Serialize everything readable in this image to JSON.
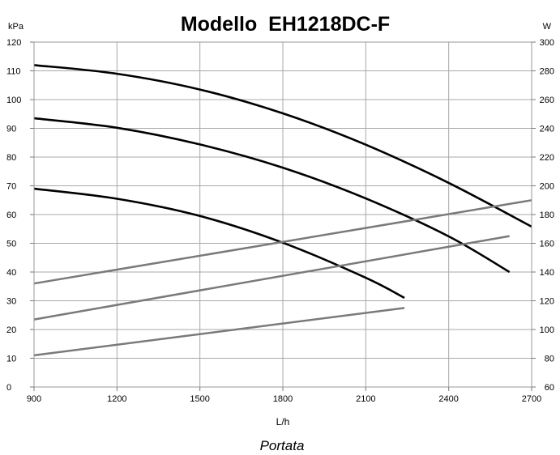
{
  "chart_data": {
    "type": "line",
    "title": "Modello  EH1218DC-F",
    "y_unit_left": "kPa",
    "y_unit_right": "W",
    "xlabel": "L/h",
    "xsublabel": "Portata",
    "xlim": [
      900,
      2700
    ],
    "ylim_left": [
      0,
      120
    ],
    "ylim_right": [
      60,
      300
    ],
    "x_ticks": [
      "900",
      "1200",
      "1500",
      "1800",
      "2100",
      "2400",
      "2700"
    ],
    "y_ticks_left": [
      "0",
      "10",
      "20",
      "30",
      "40",
      "50",
      "60",
      "70",
      "80",
      "90",
      "100",
      "110",
      "120"
    ],
    "y_ticks_right": [
      "60",
      "80",
      "100",
      "120",
      "140",
      "160",
      "180",
      "200",
      "220",
      "240",
      "260",
      "280",
      "300"
    ],
    "grid": true,
    "series": [
      {
        "axis": "left",
        "color": "#000000",
        "x": [
          900,
          1200,
          1500,
          1800,
          2100,
          2400,
          2700
        ],
        "y": [
          112,
          109,
          103.5,
          95.2,
          84.3,
          71,
          55.8
        ]
      },
      {
        "axis": "left",
        "color": "#000000",
        "x": [
          900,
          1200,
          1500,
          1800,
          2100,
          2400,
          2620
        ],
        "y": [
          93.5,
          90.2,
          84.4,
          76.3,
          65.6,
          52.4,
          40
        ]
      },
      {
        "axis": "left",
        "color": "#000000",
        "x": [
          900,
          1200,
          1500,
          1800,
          2100,
          2240
        ],
        "y": [
          69,
          65.5,
          59.5,
          50.2,
          38,
          31
        ]
      },
      {
        "axis": "right",
        "color": "#7a7a7a",
        "x": [
          900,
          2700
        ],
        "y": [
          132,
          190
        ]
      },
      {
        "axis": "right",
        "color": "#7a7a7a",
        "x": [
          900,
          2620
        ],
        "y": [
          107,
          165
        ]
      },
      {
        "axis": "right",
        "color": "#7a7a7a",
        "x": [
          900,
          2240
        ],
        "y": [
          82,
          115
        ]
      }
    ]
  }
}
